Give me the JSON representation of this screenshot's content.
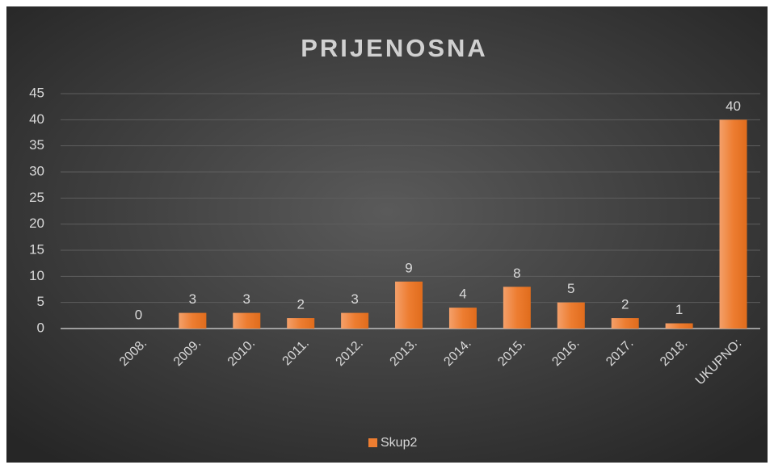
{
  "chart_data": {
    "type": "bar",
    "title": "PRIJENOSNA",
    "categories": [
      "2008.",
      "2009.",
      "2010.",
      "2011.",
      "2012.",
      "2013.",
      "2014.",
      "2015.",
      "2016.",
      "2017.",
      "2018.",
      "UKUPNO:"
    ],
    "series": [
      {
        "name": "Skup2",
        "color": "#ed7d31",
        "values": [
          0,
          3,
          3,
          2,
          3,
          9,
          4,
          8,
          5,
          2,
          1,
          40
        ]
      }
    ],
    "ylim": [
      0,
      45
    ],
    "yticks": [
      0,
      5,
      10,
      15,
      20,
      25,
      30,
      35,
      40,
      45
    ],
    "grid": true,
    "legend": "bottom"
  }
}
